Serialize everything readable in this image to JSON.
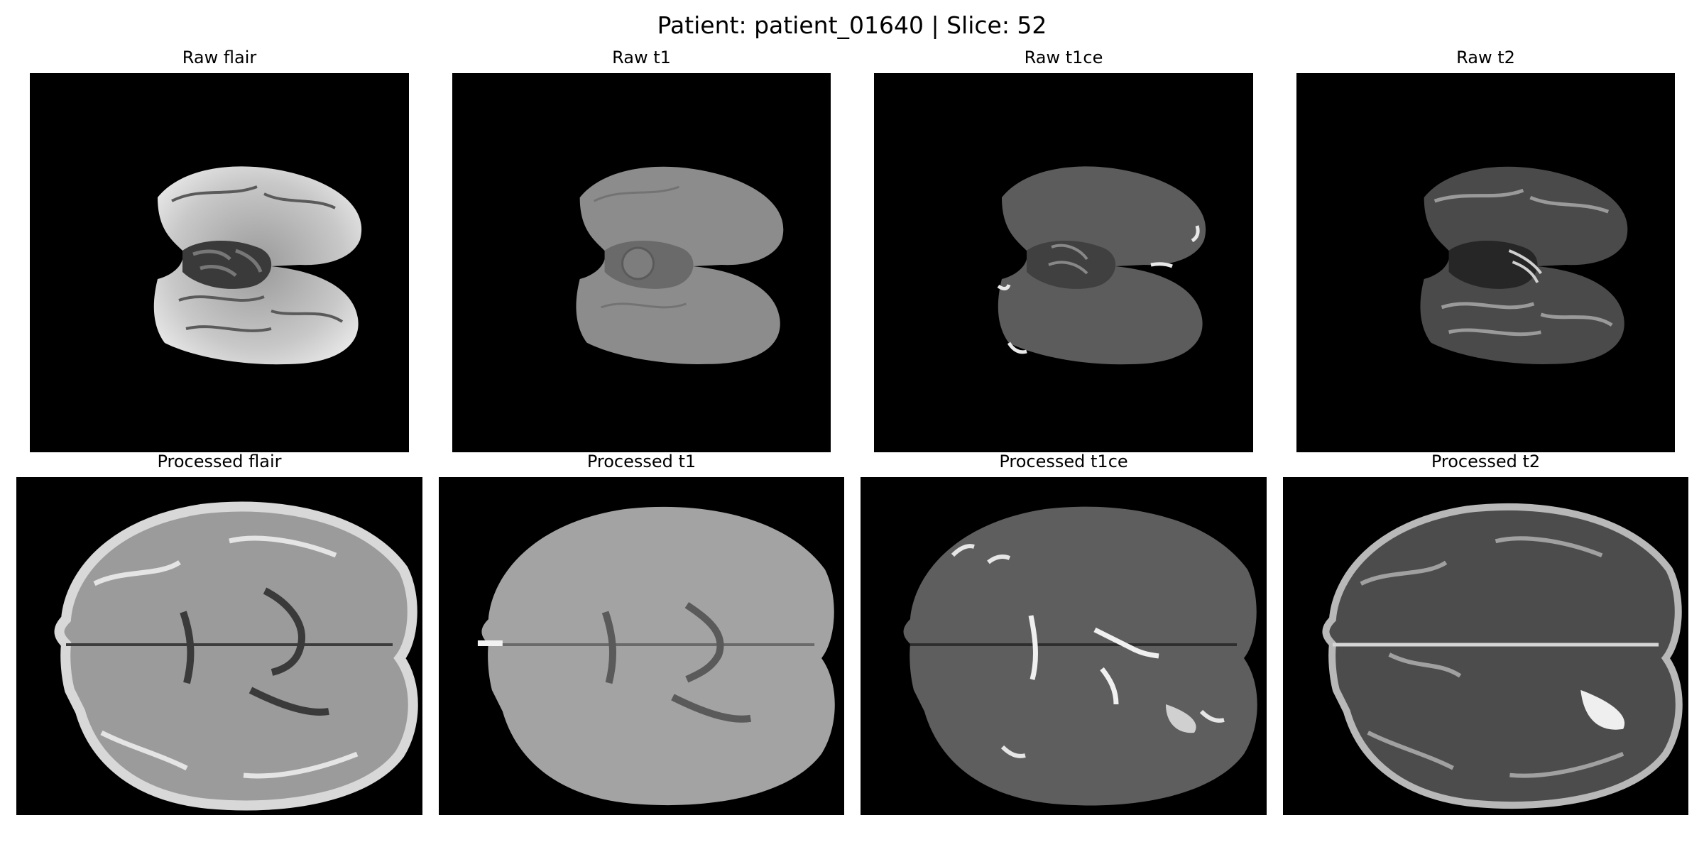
{
  "figure": {
    "title": "Patient: patient_01640 | Slice: 52"
  },
  "panels": [
    {
      "title": "Raw flair",
      "row": "raw",
      "modality": "flair"
    },
    {
      "title": "Raw t1",
      "row": "raw",
      "modality": "t1"
    },
    {
      "title": "Raw t1ce",
      "row": "raw",
      "modality": "t1ce"
    },
    {
      "title": "Raw t2",
      "row": "raw",
      "modality": "t2"
    },
    {
      "title": "Processed flair",
      "row": "processed",
      "modality": "flair"
    },
    {
      "title": "Processed t1",
      "row": "processed",
      "modality": "t1"
    },
    {
      "title": "Processed t1ce",
      "row": "processed",
      "modality": "t1ce"
    },
    {
      "title": "Processed t2",
      "row": "processed",
      "modality": "t2"
    }
  ],
  "colors": {
    "background": "#ffffff",
    "image_background": "#000000"
  }
}
